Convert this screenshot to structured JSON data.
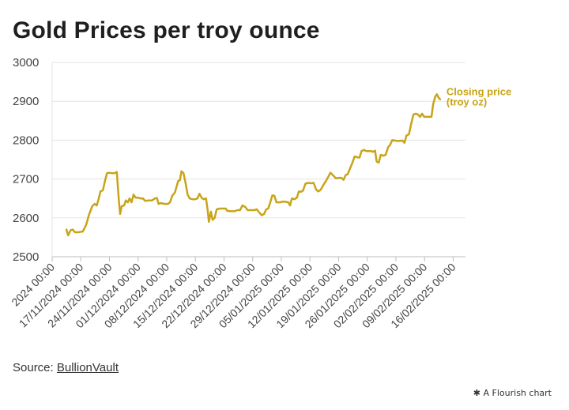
{
  "title": "Gold Prices per troy ounce",
  "source": {
    "prefix": "Source:",
    "link": "BullionVault"
  },
  "credit": {
    "icon": "flourish-icon",
    "text": "A Flourish chart"
  },
  "colors": {
    "line": "#c8a419",
    "grid": "#e3e3e3",
    "axis": "#bdbdbd",
    "text": "#444444"
  },
  "chart_data": {
    "type": "line",
    "title": "Gold Prices per troy ounce",
    "xlabel": "",
    "ylabel": "",
    "ylim": [
      2500,
      3000
    ],
    "yticks": [
      2500,
      2600,
      2700,
      2800,
      2900,
      3000
    ],
    "x_start_day": 0,
    "x_end_day": 101,
    "xticks": [
      {
        "day": 0,
        "label": "2024 00:00"
      },
      {
        "day": 7,
        "label": "17/11/2024 00:00"
      },
      {
        "day": 14,
        "label": "24/11/2024 00:00"
      },
      {
        "day": 21,
        "label": "01/12/2024 00:00"
      },
      {
        "day": 28,
        "label": "08/12/2024 00:00"
      },
      {
        "day": 35,
        "label": "15/12/2024 00:00"
      },
      {
        "day": 42,
        "label": "22/12/2024 00:00"
      },
      {
        "day": 49,
        "label": "29/12/2024 00:00"
      },
      {
        "day": 56,
        "label": "05/01/2025 00:00"
      },
      {
        "day": 63,
        "label": "12/01/2025 00:00"
      },
      {
        "day": 70,
        "label": "19/01/2025 00:00"
      },
      {
        "day": 77,
        "label": "26/01/2025 00:00"
      },
      {
        "day": 84,
        "label": "02/02/2025 00:00"
      },
      {
        "day": 91,
        "label": "09/02/2025 00:00"
      },
      {
        "day": 98,
        "label": "16/02/2025 00:00"
      }
    ],
    "series": [
      {
        "name": "Closing price (troy oz)",
        "label_lines": [
          "Closing price",
          "(troy oz)"
        ],
        "points": [
          [
            3.5,
            2570
          ],
          [
            3.9,
            2555
          ],
          [
            4.5,
            2568
          ],
          [
            5.0,
            2570
          ],
          [
            5.6,
            2563
          ],
          [
            6.4,
            2563
          ],
          [
            7.5,
            2565
          ],
          [
            8.3,
            2582
          ],
          [
            9.0,
            2608
          ],
          [
            9.8,
            2630
          ],
          [
            10.4,
            2636
          ],
          [
            10.9,
            2632
          ],
          [
            11.4,
            2650
          ],
          [
            11.8,
            2668
          ],
          [
            12.4,
            2671
          ],
          [
            12.9,
            2695
          ],
          [
            13.4,
            2715
          ],
          [
            14.0,
            2716
          ],
          [
            14.6,
            2715
          ],
          [
            15.2,
            2715
          ],
          [
            15.8,
            2718
          ],
          [
            16.3,
            2645
          ],
          [
            16.6,
            2610
          ],
          [
            17.0,
            2630
          ],
          [
            17.6,
            2632
          ],
          [
            18.0,
            2645
          ],
          [
            18.5,
            2640
          ],
          [
            18.9,
            2650
          ],
          [
            19.4,
            2640
          ],
          [
            19.9,
            2660
          ],
          [
            20.4,
            2652
          ],
          [
            21.0,
            2652
          ],
          [
            21.6,
            2650
          ],
          [
            22.2,
            2650
          ],
          [
            22.7,
            2644
          ],
          [
            23.5,
            2645
          ],
          [
            24.4,
            2645
          ],
          [
            25.1,
            2650
          ],
          [
            25.6,
            2651
          ],
          [
            26.0,
            2636
          ],
          [
            26.6,
            2638
          ],
          [
            27.4,
            2636
          ],
          [
            28.3,
            2636
          ],
          [
            28.8,
            2640
          ],
          [
            29.4,
            2658
          ],
          [
            30.0,
            2665
          ],
          [
            30.4,
            2680
          ],
          [
            30.8,
            2695
          ],
          [
            31.2,
            2697
          ],
          [
            31.6,
            2720
          ],
          [
            32.1,
            2715
          ],
          [
            32.6,
            2690
          ],
          [
            33.1,
            2660
          ],
          [
            33.6,
            2650
          ],
          [
            34.3,
            2648
          ],
          [
            35.0,
            2648
          ],
          [
            35.5,
            2650
          ],
          [
            36.0,
            2662
          ],
          [
            36.5,
            2652
          ],
          [
            37.0,
            2648
          ],
          [
            37.6,
            2650
          ],
          [
            38.0,
            2620
          ],
          [
            38.3,
            2590
          ],
          [
            38.8,
            2616
          ],
          [
            39.2,
            2595
          ],
          [
            39.7,
            2600
          ],
          [
            40.2,
            2622
          ],
          [
            41.0,
            2624
          ],
          [
            41.8,
            2624
          ],
          [
            42.4,
            2624
          ],
          [
            42.8,
            2618
          ],
          [
            43.6,
            2617
          ],
          [
            44.5,
            2617
          ],
          [
            45.3,
            2620
          ],
          [
            45.9,
            2620
          ],
          [
            46.5,
            2632
          ],
          [
            47.2,
            2628
          ],
          [
            47.8,
            2620
          ],
          [
            48.6,
            2620
          ],
          [
            49.4,
            2620
          ],
          [
            50.0,
            2622
          ],
          [
            50.6,
            2614
          ],
          [
            51.2,
            2607
          ],
          [
            51.8,
            2610
          ],
          [
            52.3,
            2622
          ],
          [
            52.8,
            2624
          ],
          [
            53.3,
            2640
          ],
          [
            53.8,
            2658
          ],
          [
            54.3,
            2657
          ],
          [
            54.8,
            2640
          ],
          [
            55.6,
            2640
          ],
          [
            56.5,
            2642
          ],
          [
            57.2,
            2641
          ],
          [
            57.7,
            2640
          ],
          [
            58.1,
            2632
          ],
          [
            58.6,
            2650
          ],
          [
            59.2,
            2648
          ],
          [
            59.8,
            2652
          ],
          [
            60.3,
            2668
          ],
          [
            60.8,
            2667
          ],
          [
            61.3,
            2670
          ],
          [
            61.9,
            2688
          ],
          [
            62.6,
            2690
          ],
          [
            63.3,
            2689
          ],
          [
            63.9,
            2690
          ],
          [
            64.5,
            2673
          ],
          [
            65.0,
            2668
          ],
          [
            65.6,
            2672
          ],
          [
            66.3,
            2685
          ],
          [
            66.9,
            2695
          ],
          [
            67.5,
            2706
          ],
          [
            68.0,
            2716
          ],
          [
            68.6,
            2710
          ],
          [
            69.3,
            2702
          ],
          [
            70.1,
            2703
          ],
          [
            70.7,
            2703
          ],
          [
            71.2,
            2698
          ],
          [
            71.7,
            2710
          ],
          [
            72.2,
            2712
          ],
          [
            72.7,
            2725
          ],
          [
            73.3,
            2740
          ],
          [
            73.9,
            2758
          ],
          [
            74.5,
            2756
          ],
          [
            75.1,
            2755
          ],
          [
            75.6,
            2772
          ],
          [
            76.2,
            2775
          ],
          [
            76.7,
            2772
          ],
          [
            77.3,
            2772
          ],
          [
            77.9,
            2772
          ],
          [
            78.4,
            2770
          ],
          [
            78.9,
            2773
          ],
          [
            79.3,
            2745
          ],
          [
            79.8,
            2742
          ],
          [
            80.3,
            2762
          ],
          [
            80.9,
            2760
          ],
          [
            81.5,
            2762
          ],
          [
            82.1,
            2782
          ],
          [
            82.6,
            2788
          ],
          [
            83.1,
            2800
          ],
          [
            83.7,
            2799
          ],
          [
            84.3,
            2798
          ],
          [
            84.9,
            2798
          ],
          [
            85.6,
            2799
          ],
          [
            86.1,
            2793
          ],
          [
            86.6,
            2812
          ],
          [
            87.2,
            2815
          ],
          [
            87.8,
            2845
          ],
          [
            88.3,
            2866
          ],
          [
            88.9,
            2868
          ],
          [
            89.4,
            2866
          ],
          [
            89.9,
            2860
          ],
          [
            90.4,
            2868
          ],
          [
            90.9,
            2860
          ],
          [
            91.5,
            2860
          ],
          [
            92.2,
            2860
          ],
          [
            92.7,
            2860
          ],
          [
            93.1,
            2892
          ],
          [
            93.6,
            2912
          ],
          [
            94.0,
            2918
          ],
          [
            94.4,
            2910
          ],
          [
            94.8,
            2905
          ]
        ]
      }
    ]
  }
}
